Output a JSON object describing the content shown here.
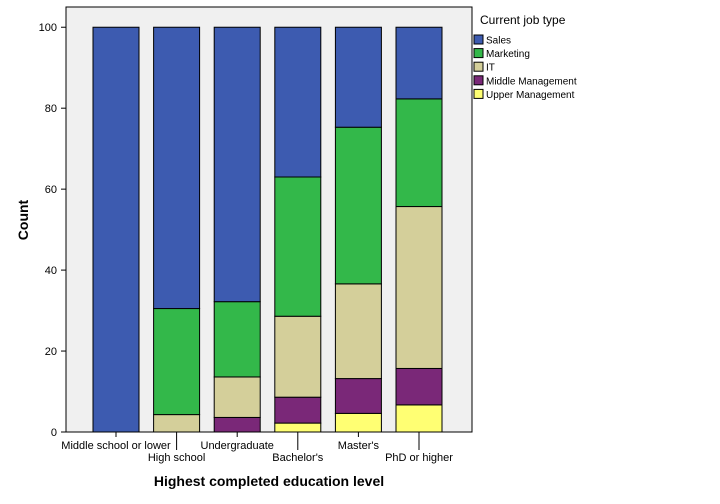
{
  "chart_data": {
    "type": "bar",
    "stacked": true,
    "categories": [
      "Middle school or lower",
      "High school",
      "Undergraduate",
      "Bachelor's",
      "Master's",
      "PhD or higher"
    ],
    "series": [
      {
        "name": "Upper Management",
        "color": "#FFFF73",
        "values": [
          0,
          0,
          0,
          2.2,
          4.6,
          6.7
        ]
      },
      {
        "name": "Middle Management",
        "color": "#7A2878",
        "values": [
          0,
          0,
          3.6,
          6.4,
          8.6,
          9.0
        ]
      },
      {
        "name": "IT",
        "color": "#D4CF9A",
        "values": [
          0,
          4.3,
          10.0,
          20.0,
          23.4,
          40.0
        ]
      },
      {
        "name": "Marketing",
        "color": "#33B84A",
        "values": [
          0,
          26.2,
          18.6,
          34.4,
          38.7,
          26.6
        ]
      },
      {
        "name": "Sales",
        "color": "#3D5BB0",
        "values": [
          100,
          69.5,
          67.8,
          37.0,
          24.7,
          17.7
        ]
      }
    ],
    "legend_order": [
      "Sales",
      "Marketing",
      "IT",
      "Middle Management",
      "Upper Management"
    ],
    "legend_title": "Current job type",
    "legend_position": "right",
    "xlabel": "Highest completed education level",
    "ylabel": "Count",
    "ylim": [
      0,
      105
    ],
    "yticks": [
      0,
      20,
      40,
      60,
      80,
      100
    ],
    "grid": false,
    "plot_background": "#F0F0F0"
  }
}
